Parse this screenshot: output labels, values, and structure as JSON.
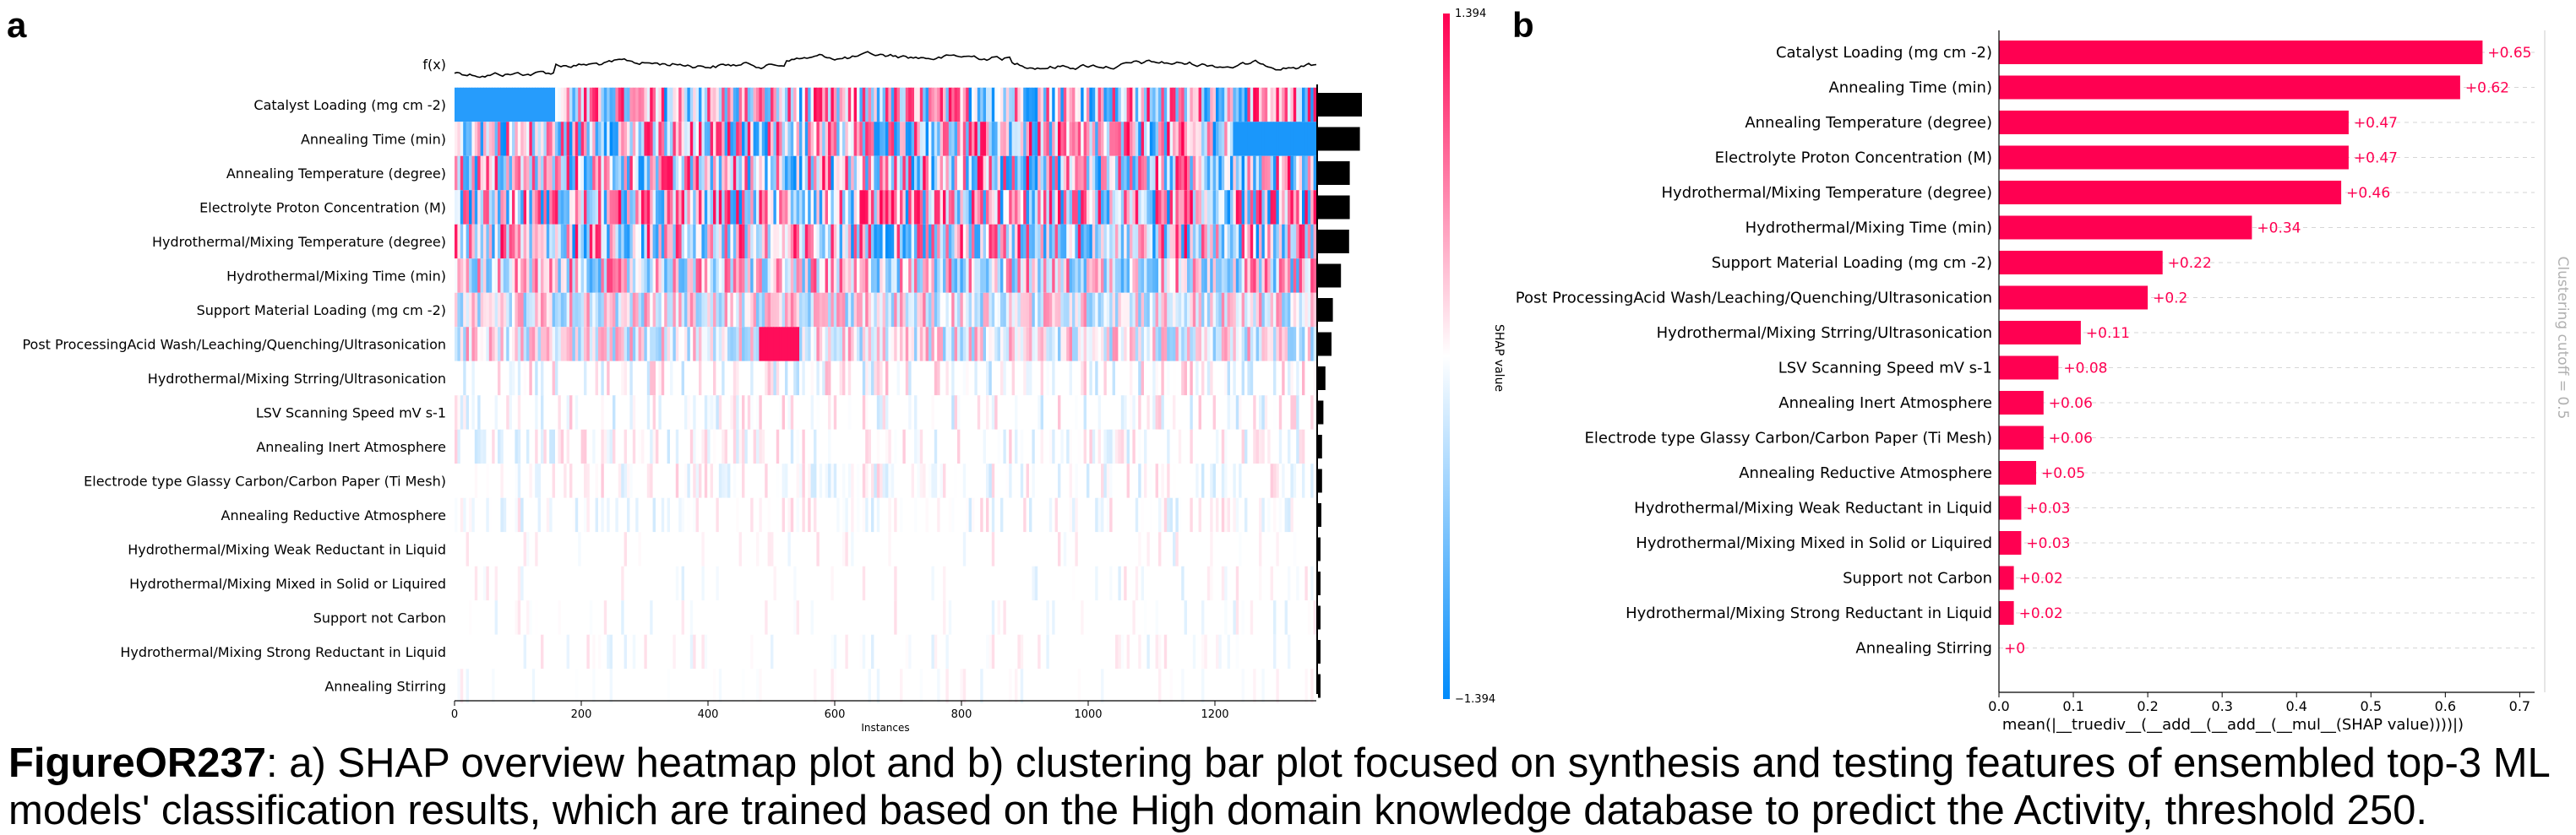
{
  "panel_labels": {
    "a": "a",
    "b": "b"
  },
  "caption": {
    "label": "FigureOR237",
    "text": ": a) SHAP overview heatmap plot and b) clustering bar plot focused on synthesis and testing features of ensembled top-3 ML models' classification results, which are trained based on the High domain knowledge database to predict the Activity, threshold 250."
  },
  "chart_data": [
    {
      "type": "heatmap",
      "title": "",
      "fx_label": "f(x)",
      "xlabel": "Instances",
      "xlim": [
        0,
        1360
      ],
      "xticks": [
        0,
        200,
        400,
        600,
        800,
        1000,
        1200
      ],
      "features": [
        "Catalyst Loading (mg cm -2)",
        "Annealing Time (min)",
        "Annealing Temperature (degree)",
        "Electrolyte Proton Concentration (M)",
        "Hydrothermal/Mixing Temperature (degree)",
        "Hydrothermal/Mixing Time (min)",
        "Support Material Loading (mg cm -2)",
        "Post ProcessingAcid Wash/Leaching/Quenching/Ultrasonication",
        "Hydrothermal/Mixing Strring/Ultrasonication",
        "LSV Scanning Speed mV s-1",
        "Annealing Inert Atmosphere",
        "Electrode type Glassy Carbon/Carbon Paper (Ti Mesh)",
        "Annealing Reductive Atmosphere",
        "Hydrothermal/Mixing Weak Reductant in Liquid",
        "Hydrothermal/Mixing Mixed in Solid or Liquired",
        "Support not Carbon",
        "Hydrothermal/Mixing Strong Reductant in Liquid",
        "Annealing Stirring"
      ],
      "mean_abs_shap": [
        0.65,
        0.62,
        0.47,
        0.47,
        0.46,
        0.34,
        0.22,
        0.2,
        0.11,
        0.08,
        0.06,
        0.06,
        0.05,
        0.03,
        0.03,
        0.02,
        0.02,
        0.0
      ],
      "colorbar": {
        "label": "SHAP value",
        "max_label": "1.394",
        "min_label": "−1.394",
        "range": [
          -1.394,
          1.394
        ]
      },
      "colors": {
        "positive": "#ff0051",
        "negative": "#008bfb",
        "neutral": "#ffffff"
      }
    },
    {
      "type": "bar",
      "orientation": "horizontal",
      "title": "",
      "categories": [
        "Catalyst Loading (mg cm -2)",
        "Annealing Time (min)",
        "Annealing Temperature (degree)",
        "Electrolyte Proton Concentration (M)",
        "Hydrothermal/Mixing Temperature (degree)",
        "Hydrothermal/Mixing Time (min)",
        "Support Material Loading (mg cm -2)",
        "Post ProcessingAcid Wash/Leaching/Quenching/Ultrasonication",
        "Hydrothermal/Mixing Strring/Ultrasonication",
        "LSV Scanning Speed mV s-1",
        "Annealing Inert Atmosphere",
        "Electrode type Glassy Carbon/Carbon Paper (Ti Mesh)",
        "Annealing Reductive Atmosphere",
        "Hydrothermal/Mixing Weak Reductant in Liquid",
        "Hydrothermal/Mixing Mixed in Solid or Liquired",
        "Support not Carbon",
        "Hydrothermal/Mixing Strong Reductant in Liquid",
        "Annealing Stirring"
      ],
      "values": [
        0.65,
        0.62,
        0.47,
        0.47,
        0.46,
        0.34,
        0.22,
        0.2,
        0.11,
        0.08,
        0.06,
        0.06,
        0.05,
        0.03,
        0.03,
        0.02,
        0.02,
        0.0
      ],
      "value_labels": [
        "+0.65",
        "+0.62",
        "+0.47",
        "+0.47",
        "+0.46",
        "+0.34",
        "+0.22",
        "+0.2",
        "+0.11",
        "+0.08",
        "+0.06",
        "+0.06",
        "+0.05",
        "+0.03",
        "+0.03",
        "+0.02",
        "+0.02",
        "+0"
      ],
      "xlabel": "mean(|__truediv__(__add__(__add__(__mul__(SHAP value))))|)",
      "xlim": [
        0,
        0.72
      ],
      "xticks": [
        "0.0",
        "0.1",
        "0.2",
        "0.3",
        "0.4",
        "0.5",
        "0.6",
        "0.7"
      ],
      "cutoff_label": "Clustering cutoff = 0.5",
      "grid": "horizontal-dashed",
      "colors": {
        "bar": "#ff0051",
        "label": "#ff0051"
      }
    }
  ]
}
